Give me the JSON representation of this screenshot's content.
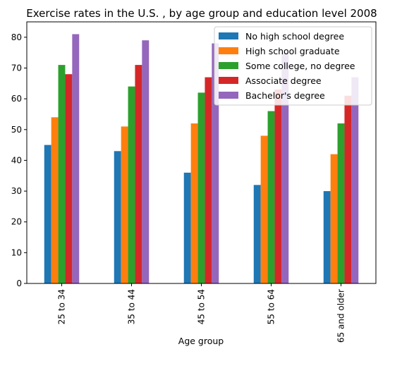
{
  "chart_data": {
    "type": "bar",
    "title": "Exercise rates in the U.S. , by age group and education level 2008",
    "xlabel": "Age group",
    "ylabel": "",
    "categories": [
      "25 to 34",
      "35 to 44",
      "45 to 54",
      "55 to 64",
      "65 and older"
    ],
    "ylim": [
      0,
      85
    ],
    "yticks": [
      0,
      10,
      20,
      30,
      40,
      50,
      60,
      70,
      80
    ],
    "grid": false,
    "legend_position": "top-right",
    "series": [
      {
        "name": "No high school degree",
        "color": "#1f77b4",
        "values": [
          45,
          43,
          36,
          32,
          30
        ]
      },
      {
        "name": "High school graduate",
        "color": "#ff7f0e",
        "values": [
          54,
          51,
          52,
          48,
          42
        ]
      },
      {
        "name": "Some college, no degree",
        "color": "#2ca02c",
        "values": [
          71,
          64,
          62,
          56,
          52
        ]
      },
      {
        "name": "Associate degree",
        "color": "#d62728",
        "values": [
          68,
          71,
          67,
          63,
          61
        ]
      },
      {
        "name": "Bachelor's degree",
        "color": "#9467bd",
        "values": [
          81,
          79,
          78,
          75,
          67
        ]
      }
    ]
  }
}
